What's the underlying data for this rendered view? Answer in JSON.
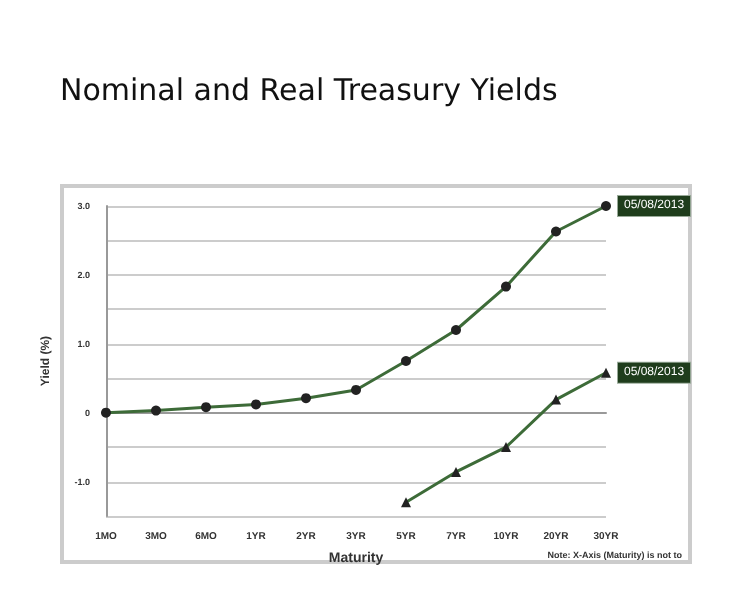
{
  "chart_data": {
    "type": "line",
    "title": "Nominal and Real Treasury Yields",
    "xlabel": "Maturity",
    "ylabel": "Yield (%)",
    "categories": [
      "1MO",
      "3MO",
      "6MO",
      "1YR",
      "2YR",
      "3YR",
      "5YR",
      "7YR",
      "10YR",
      "20YR",
      "30YR"
    ],
    "series": [
      {
        "color": "#3d6b38",
        "marker": "circle",
        "values": [
          0.0,
          0.03,
          0.08,
          0.12,
          0.21,
          0.33,
          0.75,
          1.2,
          1.83,
          2.63,
          3.0
        ]
      },
      {
        "color": "#3d6b38",
        "marker": "triangle",
        "values": [
          null,
          null,
          null,
          null,
          null,
          null,
          -1.3,
          -0.86,
          -0.5,
          0.19,
          0.58
        ]
      }
    ],
    "ylim": [
      -1.5,
      3.0
    ],
    "yticks": [
      {
        "value": -1.5,
        "label": null
      },
      {
        "value": -1.0,
        "label": "-1.0"
      },
      {
        "value": -0.5,
        "label": null
      },
      0,
      {
        "value": 0.5,
        "label": null
      },
      {
        "value": 1.0,
        "label": "1.0"
      },
      {
        "value": 1.5,
        "label": null
      },
      {
        "value": 2.0,
        "label": "2.0"
      },
      {
        "value": 2.5,
        "label": null
      },
      {
        "value": 3.0,
        "label": "3.0"
      }
    ],
    "grid": "y",
    "line_style": "solid",
    "annotations": [
      {
        "text": "05/08/2013",
        "x": "30YR",
        "y": 3.0
      },
      {
        "text": "05/08/2013",
        "x": "30YR",
        "y": 0.58
      },
      "Note: X-Axis (Maturity) is not to"
    ]
  }
}
